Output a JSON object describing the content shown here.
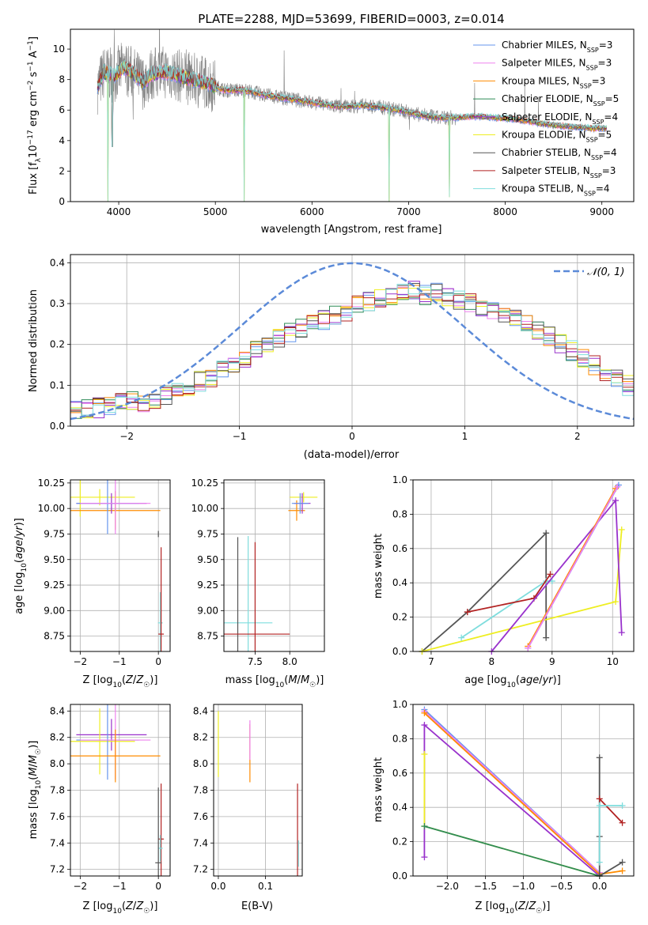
{
  "title": "PLATE=2288, MJD=53699, FIBERID=0003, z=0.014",
  "colors": {
    "chabrier_miles": "#6495ed",
    "salpeter_miles": "#ee82ee",
    "kroupa_miles": "#ff8c00",
    "chabrier_elodie": "#2e8b57",
    "salpeter_elodie": "#9932cc",
    "kroupa_elodie": "#eeee22",
    "chabrier_stelib": "#555555",
    "salpeter_stelib": "#b22222",
    "kroupa_stelib": "#7fdddd",
    "data": "#808080",
    "gauss": "#5b8ad8",
    "grid": "#b0b0b0"
  },
  "panels": {
    "spectrum": {
      "xlabel": "wavelength [Angstrom, rest frame]",
      "ylabel": "Flux [f_λ 10^-17 erg cm^-2 s^-1 A^-1]",
      "legend": [
        {
          "label": "Chabrier MILES, N_SSP=3",
          "color_key": "chabrier_miles"
        },
        {
          "label": "Salpeter MILES, N_SSP=3",
          "color_key": "salpeter_miles"
        },
        {
          "label": "Kroupa MILES, N_SSP=3",
          "color_key": "kroupa_miles"
        },
        {
          "label": "Chabrier ELODIE, N_SSP=5",
          "color_key": "chabrier_elodie"
        },
        {
          "label": "Salpeter ELODIE, N_SSP=4",
          "color_key": "salpeter_elodie"
        },
        {
          "label": "Kroupa ELODIE, N_SSP=5",
          "color_key": "kroupa_elodie"
        },
        {
          "label": "Chabrier STELIB, N_SSP=4",
          "color_key": "chabrier_stelib"
        },
        {
          "label": "Salpeter STELIB, N_SSP=3",
          "color_key": "salpeter_stelib"
        },
        {
          "label": "Kroupa STELIB, N_SSP=4",
          "color_key": "kroupa_stelib"
        }
      ]
    },
    "residuals": {
      "xlabel": "(data-model)/error",
      "ylabel": "Normed distribution",
      "legend": "N(0,1)"
    },
    "age_z": {
      "xlabel": "Z [log10(Z/Z☉)]",
      "ylabel": "age [log10(age/yr)]"
    },
    "age_mass": {
      "xlabel": "mass [log10(M/M☉)]"
    },
    "mw_age": {
      "xlabel": "age [log10(age/yr)]",
      "ylabel": "mass weight"
    },
    "mass_z": {
      "xlabel": "Z [log10(Z/Z☉)]",
      "ylabel": "mass [log10(M/M☉)]"
    },
    "mass_ebv": {
      "xlabel": "E(B-V)"
    },
    "mw_z": {
      "xlabel": "Z [log10(Z/Z☉)]",
      "ylabel": "mass weight"
    }
  },
  "chart_data": [
    {
      "id": "spectrum",
      "type": "line",
      "xlim": [
        3500,
        9330
      ],
      "ylim": [
        0,
        11.3
      ],
      "xticks": [
        4000,
        5000,
        6000,
        7000,
        8000,
        9000
      ],
      "yticks": [
        0,
        2,
        4,
        6,
        8,
        10
      ],
      "grid": false,
      "legend_position": "top-right",
      "continuum": {
        "wavelength": [
          3780,
          3850,
          3950,
          4050,
          4150,
          4250,
          4350,
          4500,
          4700,
          4900,
          5100,
          5300,
          5500,
          5700,
          5900,
          6100,
          6300,
          6500,
          6700,
          6900,
          7100,
          7300,
          7500,
          7700,
          7900,
          8100,
          8300,
          8500,
          8700,
          8900,
          9050
        ],
        "flux": [
          7.5,
          8.5,
          8.2,
          8.8,
          8.4,
          7.8,
          8.4,
          8.5,
          8.1,
          7.8,
          7.3,
          7.3,
          7.0,
          6.8,
          6.6,
          6.4,
          6.2,
          6.3,
          6.2,
          6.0,
          5.7,
          5.5,
          5.5,
          5.6,
          5.5,
          5.4,
          5.2,
          5.0,
          4.9,
          4.8,
          4.8
        ]
      },
      "absorption_features": [
        {
          "wavelength": 3890,
          "min_flux": 0
        },
        {
          "wavelength": 3933,
          "min_flux": 3.6
        },
        {
          "wavelength": 5300,
          "min_flux": 0
        },
        {
          "wavelength": 6800,
          "min_flux": 0
        },
        {
          "wavelength": 7420,
          "min_flux": 0.3
        }
      ]
    },
    {
      "id": "residuals",
      "type": "line",
      "xlim": [
        -2.5,
        2.5
      ],
      "ylim": [
        0,
        0.42
      ],
      "xticks": [
        -2,
        -1,
        0,
        1,
        2
      ],
      "yticks": [
        0.0,
        0.1,
        0.2,
        0.3,
        0.4
      ],
      "grid": true,
      "legend_position": "top-right",
      "bin_edges": [
        -2.5,
        2.5
      ],
      "bins": 50,
      "histogram_envelope": [
        0.04,
        0.04,
        0.045,
        0.05,
        0.055,
        0.065,
        0.06,
        0.065,
        0.075,
        0.09,
        0.1,
        0.11,
        0.12,
        0.135,
        0.15,
        0.165,
        0.185,
        0.2,
        0.215,
        0.23,
        0.24,
        0.25,
        0.26,
        0.27,
        0.28,
        0.295,
        0.305,
        0.31,
        0.32,
        0.325,
        0.33,
        0.32,
        0.325,
        0.315,
        0.31,
        0.3,
        0.29,
        0.28,
        0.27,
        0.26,
        0.25,
        0.235,
        0.22,
        0.2,
        0.185,
        0.165,
        0.15,
        0.13,
        0.115,
        0.1
      ]
    },
    {
      "id": "age_z",
      "type": "scatter",
      "xlim": [
        -2.25,
        0.3
      ],
      "ylim": [
        8.6,
        10.28
      ],
      "xticks": [
        -2,
        -1,
        0
      ],
      "yticks": [
        8.75,
        9.0,
        9.25,
        9.5,
        9.75,
        10.0,
        10.25
      ],
      "grid": true,
      "points": [
        {
          "series": "kroupa_elodie",
          "x": -1.5,
          "y": 10.11,
          "xerr": 0.9,
          "yerr": 0.08
        },
        {
          "series": "kroupa_elodie",
          "x": -2.0,
          "y": 10.1,
          "yerr": 0.18
        },
        {
          "series": "kroupa_miles",
          "x": -1.1,
          "y": 9.98,
          "xerr": 1.15,
          "yerr": 0.19
        },
        {
          "series": "salpeter_elodie",
          "x": -1.2,
          "y": 10.05,
          "xerr": 0.9,
          "yerr": 0.1
        },
        {
          "series": "chabrier_miles",
          "x": -1.3,
          "y": 10.05,
          "xerr": 0.8,
          "yerr": 0.3
        },
        {
          "series": "salpeter_miles",
          "x": -1.1,
          "y": 10.05,
          "xerr": 0.9,
          "yerr": 0.3
        },
        {
          "series": "chabrier_stelib",
          "x": 0.0,
          "y": 9.75,
          "yerr": 0.03
        },
        {
          "series": "kroupa_stelib",
          "x": 0.05,
          "y": 8.88,
          "xerr": 0.06,
          "yerr": 0.3
        },
        {
          "series": "salpeter_stelib",
          "x": 0.07,
          "y": 8.77,
          "xerr": 0.07,
          "yerr": 0.85
        }
      ]
    },
    {
      "id": "age_mass",
      "type": "scatter",
      "xlim": [
        7.05,
        8.5
      ],
      "ylim": [
        8.6,
        10.28
      ],
      "xticks": [
        7.5,
        8.0
      ],
      "yticks": [
        8.75,
        9.0,
        9.25,
        9.5,
        9.75,
        10.0,
        10.25
      ],
      "grid": true,
      "points": [
        {
          "series": "kroupa_elodie",
          "x": 8.2,
          "y": 10.11,
          "xerr": 0.2,
          "yerr": 0.05
        },
        {
          "series": "kroupa_miles",
          "x": 8.1,
          "y": 9.98,
          "xerr": 0.12,
          "yerr": 0.1
        },
        {
          "series": "salpeter_elodie",
          "x": 8.18,
          "y": 10.05,
          "xerr": 0.12,
          "yerr": 0.1
        },
        {
          "series": "chabrier_miles",
          "x": 8.15,
          "y": 10.05,
          "xerr": 0.12,
          "yerr": 0.1
        },
        {
          "series": "kroupa_stelib",
          "x": 7.4,
          "y": 8.88,
          "xerr": 0.35,
          "yerr": 0.85
        },
        {
          "series": "chabrier_stelib",
          "x": 7.25,
          "y": 8.77,
          "yerr": 0.95
        },
        {
          "series": "salpeter_stelib",
          "x": 7.5,
          "y": 8.77,
          "xerr": 0.5,
          "yerr": 0.9
        }
      ]
    },
    {
      "id": "mw_age",
      "type": "line",
      "xlim": [
        6.7,
        10.35
      ],
      "ylim": [
        0,
        1.0
      ],
      "xticks": [
        7,
        8,
        9,
        10
      ],
      "yticks": [
        0.0,
        0.2,
        0.4,
        0.6,
        0.8,
        1.0
      ],
      "grid": true,
      "series": [
        {
          "name": "chabrier_stelib",
          "x": [
            6.85,
            7.6,
            8.9,
            8.9
          ],
          "y": [
            0.0,
            0.23,
            0.69,
            0.08
          ]
        },
        {
          "name": "kroupa_elodie",
          "x": [
            6.85,
            10.05,
            10.15
          ],
          "y": [
            0.0,
            0.29,
            0.71
          ]
        },
        {
          "name": "kroupa_stelib",
          "x": [
            7.5,
            8.9,
            9.0
          ],
          "y": [
            0.08,
            0.41,
            0.41
          ]
        },
        {
          "name": "salpeter_stelib",
          "x": [
            7.6,
            8.7,
            8.97
          ],
          "y": [
            0.23,
            0.31,
            0.45
          ]
        },
        {
          "name": "salpeter_elodie",
          "x": [
            8.0,
            10.05,
            10.15
          ],
          "y": [
            0.0,
            0.88,
            0.11
          ]
        },
        {
          "name": "chabrier_miles",
          "x": [
            8.6,
            10.1
          ],
          "y": [
            0.02,
            0.97
          ]
        },
        {
          "name": "kroupa_miles",
          "x": [
            8.6,
            10.05
          ],
          "y": [
            0.03,
            0.95
          ]
        },
        {
          "name": "salpeter_miles",
          "x": [
            8.6,
            10.08
          ],
          "y": [
            0.02,
            0.96
          ]
        }
      ]
    },
    {
      "id": "mass_z",
      "type": "scatter",
      "xlim": [
        -2.25,
        0.3
      ],
      "ylim": [
        7.15,
        8.45
      ],
      "xticks": [
        -2,
        -1,
        0
      ],
      "yticks": [
        7.2,
        7.4,
        7.6,
        7.8,
        8.0,
        8.2,
        8.4
      ],
      "grid": true,
      "points": [
        {
          "series": "salpeter_elodie",
          "x": -1.2,
          "y": 8.22,
          "xerr": 0.9,
          "yerr": 0.12
        },
        {
          "series": "kroupa_elodie",
          "x": -1.5,
          "y": 8.17,
          "xerr": 0.9,
          "yerr": 0.25
        },
        {
          "series": "chabrier_miles",
          "x": -1.3,
          "y": 8.18,
          "xerr": 0.8,
          "yerr": 0.3
        },
        {
          "series": "salpeter_miles",
          "x": -1.1,
          "y": 8.18,
          "xerr": 0.9,
          "yerr": 0.3
        },
        {
          "series": "kroupa_miles",
          "x": -1.1,
          "y": 8.06,
          "xerr": 1.15,
          "yerr": 0.2
        },
        {
          "series": "salpeter_stelib",
          "x": 0.07,
          "y": 7.43,
          "xerr": 0.07,
          "yerr": 0.42
        },
        {
          "series": "kroupa_stelib",
          "x": 0.05,
          "y": 7.36,
          "xerr": 0.06,
          "yerr": 0.1
        },
        {
          "series": "chabrier_stelib",
          "x": 0.0,
          "y": 7.25,
          "xerr": 0.08,
          "yerr": 0.57
        }
      ]
    },
    {
      "id": "mass_ebv",
      "type": "scatter",
      "xlim": [
        -0.01,
        0.178
      ],
      "ylim": [
        7.15,
        8.45
      ],
      "xticks": [
        0.0,
        0.1
      ],
      "yticks": [
        7.2,
        7.4,
        7.6,
        7.8,
        8.0,
        8.2,
        8.4
      ],
      "grid": true,
      "points": [
        {
          "series": "kroupa_elodie",
          "x": 0.0,
          "y": 8.15,
          "yerr": 0.25
        },
        {
          "series": "kroupa_miles",
          "x": 0.067,
          "y": 8.08,
          "yerr": 0.22
        },
        {
          "series": "salpeter_miles",
          "x": 0.067,
          "y": 8.18,
          "yerr": 0.15
        },
        {
          "series": "salpeter_stelib",
          "x": 0.168,
          "y": 7.5,
          "yerr": 0.35
        },
        {
          "series": "kroupa_stelib",
          "x": 0.17,
          "y": 7.32,
          "yerr": 0.1
        }
      ]
    },
    {
      "id": "mw_z",
      "type": "line",
      "xlim": [
        -2.45,
        0.45
      ],
      "ylim": [
        0,
        1.0
      ],
      "xticks": [
        -2.0,
        -1.5,
        -1.0,
        -0.5,
        0.0
      ],
      "yticks": [
        0.0,
        0.2,
        0.4,
        0.6,
        0.8,
        1.0
      ],
      "grid": true,
      "series": [
        {
          "name": "chabrier_miles",
          "x": [
            -2.3,
            0.0
          ],
          "y": [
            0.97,
            0.02
          ]
        },
        {
          "name": "salpeter_miles",
          "x": [
            -2.3,
            0.0
          ],
          "y": [
            0.96,
            0.02
          ]
        },
        {
          "name": "kroupa_miles",
          "x": [
            -2.3,
            0.0,
            0.3
          ],
          "y": [
            0.95,
            0.01,
            0.03
          ]
        },
        {
          "name": "salpeter_elodie",
          "x": [
            -2.3,
            -2.3,
            0.0
          ],
          "y": [
            0.11,
            0.88,
            0.0
          ]
        },
        {
          "name": "kroupa_elodie",
          "x": [
            -2.3,
            -2.3,
            0.0
          ],
          "y": [
            0.71,
            0.29,
            0.0
          ]
        },
        {
          "name": "chabrier_elodie",
          "x": [
            -2.3,
            0.0
          ],
          "y": [
            0.29,
            0.0
          ]
        },
        {
          "name": "chabrier_stelib",
          "x": [
            0.0,
            0.0,
            0.0,
            0.3
          ],
          "y": [
            0.69,
            0.23,
            0.0,
            0.08
          ]
        },
        {
          "name": "salpeter_stelib",
          "x": [
            0.0,
            0.3
          ],
          "y": [
            0.45,
            0.31
          ]
        },
        {
          "name": "kroupa_stelib",
          "x": [
            0.0,
            0.0,
            0.3
          ],
          "y": [
            0.08,
            0.41,
            0.41
          ]
        }
      ]
    }
  ]
}
